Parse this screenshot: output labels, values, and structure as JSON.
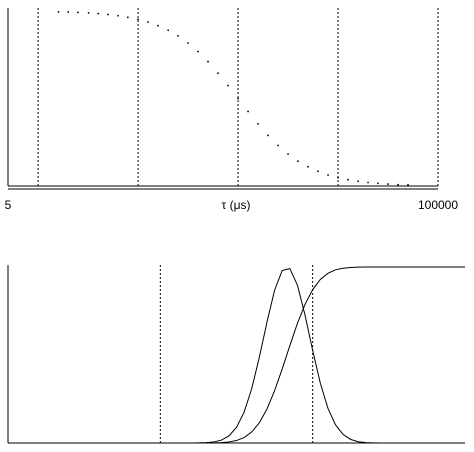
{
  "chart_data": [
    {
      "type": "scatter",
      "xlabel": "τ (μs)",
      "xscale": "log",
      "color": "#000000",
      "x": [
        16,
        20,
        25,
        32,
        40,
        50,
        63,
        79,
        100,
        126,
        158,
        200,
        251,
        316,
        398,
        501,
        631,
        794,
        1000,
        1259,
        1585,
        1995,
        2512,
        3162,
        3981,
        5012,
        6310,
        7943,
        10000,
        12589,
        15849,
        19953,
        25119,
        31623,
        39811,
        50119
      ],
      "values": [
        0.995,
        0.994,
        0.992,
        0.989,
        0.985,
        0.98,
        0.973,
        0.964,
        0.952,
        0.937,
        0.916,
        0.89,
        0.858,
        0.817,
        0.768,
        0.711,
        0.645,
        0.574,
        0.5,
        0.426,
        0.355,
        0.289,
        0.232,
        0.183,
        0.142,
        0.11,
        0.084,
        0.063,
        0.048,
        0.036,
        0.027,
        0.02,
        0.015,
        0.011,
        0.008,
        0.006
      ],
      "xlim": [
        5,
        100000
      ],
      "xticks": [
        5,
        100000
      ],
      "xgrid": [
        10,
        100,
        1000,
        10000,
        100000
      ],
      "ylim": [
        0,
        1
      ]
    },
    {
      "type": "line",
      "color": "#000000",
      "x": [
        0,
        1.2,
        1.25,
        1.3,
        1.35,
        1.4,
        1.45,
        1.5,
        1.55,
        1.6,
        1.65,
        1.7,
        1.75,
        1.8,
        1.85,
        1.9,
        1.95,
        2.0,
        2.05,
        2.1,
        2.15,
        2.2,
        2.25,
        2.3,
        2.35,
        2.4,
        2.45,
        2.5,
        3.0
      ],
      "series": [
        {
          "values": [
            0,
            0.0001,
            0.0006,
            0.002,
            0.006,
            0.016,
            0.04,
            0.089,
            0.175,
            0.309,
            0.487,
            0.687,
            0.868,
            0.98,
            0.991,
            0.897,
            0.726,
            0.526,
            0.341,
            0.198,
            0.103,
            0.048,
            0.02,
            0.007,
            0.002,
            0.0007,
            0.0002,
            0,
            0
          ]
        },
        {
          "values": [
            0,
            0,
            0.0001,
            0.0002,
            0.0007,
            0.002,
            0.006,
            0.014,
            0.031,
            0.063,
            0.115,
            0.193,
            0.297,
            0.421,
            0.553,
            0.68,
            0.788,
            0.871,
            0.929,
            0.964,
            0.984,
            0.993,
            0.997,
            0.999,
            1,
            1,
            1,
            1,
            1
          ]
        }
      ],
      "xlim": [
        0,
        3
      ],
      "xgrid": [
        1,
        2
      ],
      "ylim": [
        0,
        1
      ]
    }
  ]
}
